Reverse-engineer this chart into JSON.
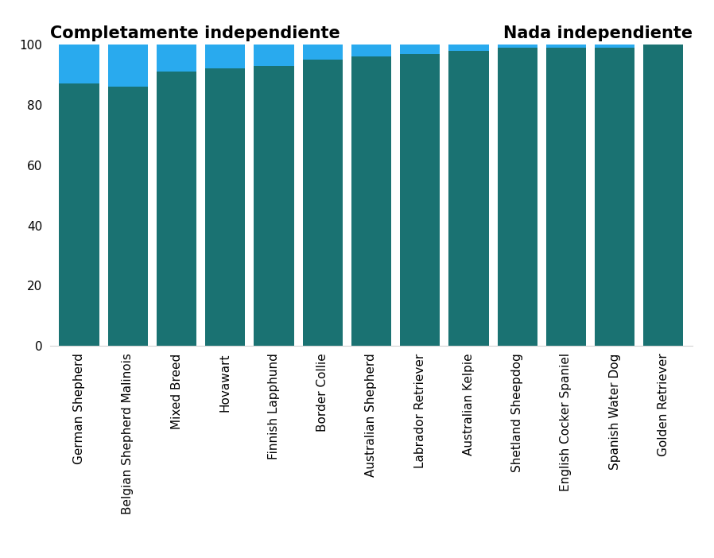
{
  "categories": [
    "German Shepherd",
    "Belgian Shepherd Malinois",
    "Mixed Breed",
    "Hovawart",
    "Finnish Lapphund",
    "Border Collie",
    "Australian Shepherd",
    "Labrador Retriever",
    "Australian Kelpie",
    "Shetland Sheepdog",
    "English Cocker Spaniel",
    "Spanish Water Dog",
    "Golden Retriever"
  ],
  "teal_values": [
    87,
    86,
    91,
    92,
    93,
    95,
    96,
    97,
    98,
    99,
    99,
    99,
    100
  ],
  "blue_values": [
    13,
    14,
    9,
    8,
    7,
    5,
    4,
    3,
    2,
    1,
    1,
    1,
    0
  ],
  "teal_color": "#1a7272",
  "blue_color": "#29aaee",
  "label_left": "Completamente independiente",
  "label_right": "Nada independiente",
  "ylim": [
    0,
    100
  ],
  "background_color": "#ffffff",
  "title_fontsize": 15,
  "label_fontsize": 15,
  "tick_fontsize": 11
}
